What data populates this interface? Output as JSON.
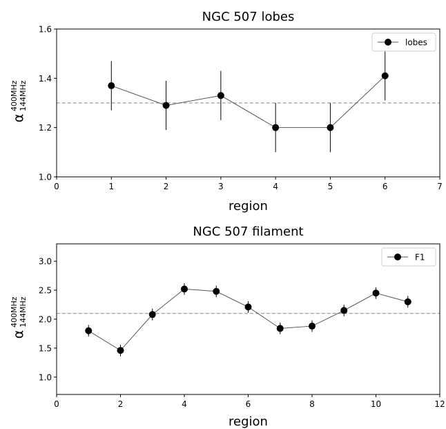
{
  "chart_data": [
    {
      "type": "line",
      "title": "NGC 507 lobes",
      "xlabel": "region",
      "ylabel_base": "α",
      "ylabel_sup": "400MHz",
      "ylabel_sub": "144MHz",
      "xlim": [
        0,
        7
      ],
      "ylim": [
        1.0,
        1.6
      ],
      "xticks": [
        0,
        1,
        2,
        3,
        4,
        5,
        6,
        7
      ],
      "yticks": [
        1.0,
        1.2,
        1.4,
        1.6
      ],
      "ytick_labels": [
        "1.0",
        "1.2",
        "1.4",
        "1.6"
      ],
      "reference_line": 1.3,
      "legend_position": "top-right",
      "grid": false,
      "series": [
        {
          "name": "lobes",
          "color": "#000000",
          "x": [
            1,
            2,
            3,
            4,
            5,
            6
          ],
          "y": [
            1.37,
            1.29,
            1.33,
            1.2,
            1.2,
            1.41
          ],
          "yerr": [
            0.1,
            0.1,
            0.1,
            0.1,
            0.1,
            0.1
          ]
        }
      ]
    },
    {
      "type": "line",
      "title": "NGC 507 filament",
      "xlabel": "region",
      "ylabel_base": "α",
      "ylabel_sup": "400MHz",
      "ylabel_sub": "144MHz",
      "xlim": [
        0,
        12
      ],
      "ylim": [
        0.7,
        3.3
      ],
      "xticks": [
        0,
        2,
        4,
        6,
        8,
        10,
        12
      ],
      "yticks": [
        1.0,
        1.5,
        2.0,
        2.5,
        3.0
      ],
      "ytick_labels": [
        "1.0",
        "1.5",
        "2.0",
        "2.5",
        "3.0"
      ],
      "reference_line": 2.1,
      "legend_position": "top-right",
      "grid": false,
      "series": [
        {
          "name": "F1",
          "color": "#000000",
          "x": [
            1,
            2,
            3,
            4,
            5,
            6,
            7,
            8,
            9,
            10,
            11
          ],
          "y": [
            1.8,
            1.46,
            2.08,
            2.52,
            2.48,
            2.21,
            1.84,
            1.88,
            2.15,
            2.45,
            2.3
          ],
          "yerr": [
            0.1,
            0.1,
            0.1,
            0.1,
            0.1,
            0.1,
            0.1,
            0.1,
            0.1,
            0.1,
            0.1
          ]
        }
      ]
    }
  ]
}
